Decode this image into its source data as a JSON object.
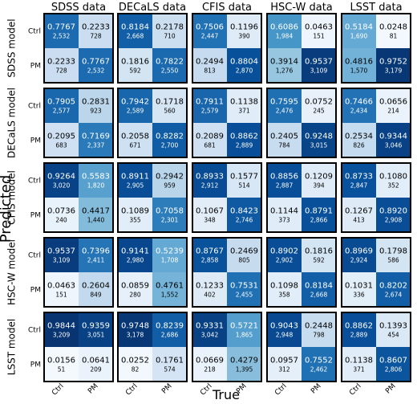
{
  "chart_data": {
    "type": "heatmap",
    "column_titles": [
      "SDSS data",
      "DECaLS data",
      "CFIS data",
      "HSC-W data",
      "LSST data"
    ],
    "row_titles": [
      "SDSS model",
      "DECaLS model",
      "CFIS model",
      "HSC-W model",
      "LSST model"
    ],
    "class_labels": [
      "Ctrl",
      "PM"
    ],
    "xlabel": "True",
    "ylabel": "Predicted",
    "color_range": [
      0,
      1
    ],
    "colormap": "Blues",
    "matrices": [
      [
        {
          "values": [
            [
              0.7767,
              0.2233
            ],
            [
              0.2233,
              0.7767
            ]
          ],
          "counts": [
            [
              "2,532",
              "728"
            ],
            [
              "728",
              "2,532"
            ]
          ]
        },
        {
          "values": [
            [
              0.8184,
              0.2178
            ],
            [
              0.1816,
              0.7822
            ]
          ],
          "counts": [
            [
              "2,668",
              "710"
            ],
            [
              "592",
              "2,550"
            ]
          ]
        },
        {
          "values": [
            [
              0.7506,
              0.1196
            ],
            [
              0.2494,
              0.8804
            ]
          ],
          "counts": [
            [
              "2,447",
              "390"
            ],
            [
              "813",
              "2,870"
            ]
          ]
        },
        {
          "values": [
            [
              0.6086,
              0.0463
            ],
            [
              0.3914,
              0.9537
            ]
          ],
          "counts": [
            [
              "1,984",
              "151"
            ],
            [
              "1,276",
              "3,109"
            ]
          ]
        },
        {
          "values": [
            [
              0.5184,
              0.0248
            ],
            [
              0.4816,
              0.9752
            ]
          ],
          "counts": [
            [
              "1,690",
              "81"
            ],
            [
              "1,570",
              "3,179"
            ]
          ]
        }
      ],
      [
        {
          "values": [
            [
              0.7905,
              0.2831
            ],
            [
              0.2095,
              0.7169
            ]
          ],
          "counts": [
            [
              "2,577",
              "923"
            ],
            [
              "683",
              "2,337"
            ]
          ]
        },
        {
          "values": [
            [
              0.7942,
              0.1718
            ],
            [
              0.2058,
              0.8282
            ]
          ],
          "counts": [
            [
              "2,589",
              "560"
            ],
            [
              "671",
              "2,700"
            ]
          ]
        },
        {
          "values": [
            [
              0.7911,
              0.1138
            ],
            [
              0.2089,
              0.8862
            ]
          ],
          "counts": [
            [
              "2,579",
              "371"
            ],
            [
              "681",
              "2,889"
            ]
          ]
        },
        {
          "values": [
            [
              0.7595,
              0.0752
            ],
            [
              0.2405,
              0.9248
            ]
          ],
          "counts": [
            [
              "2,476",
              "245"
            ],
            [
              "784",
              "3,015"
            ]
          ]
        },
        {
          "values": [
            [
              0.7466,
              0.0656
            ],
            [
              0.2534,
              0.9344
            ]
          ],
          "counts": [
            [
              "2,434",
              "214"
            ],
            [
              "826",
              "3,046"
            ]
          ]
        }
      ],
      [
        {
          "values": [
            [
              0.9264,
              0.5583
            ],
            [
              0.0736,
              0.4417
            ]
          ],
          "counts": [
            [
              "3,020",
              "1,820"
            ],
            [
              "240",
              "1,440"
            ]
          ]
        },
        {
          "values": [
            [
              0.8911,
              0.2942
            ],
            [
              0.1089,
              0.7058
            ]
          ],
          "counts": [
            [
              "2,905",
              "959"
            ],
            [
              "355",
              "2,301"
            ]
          ]
        },
        {
          "values": [
            [
              0.8933,
              0.1577
            ],
            [
              0.1067,
              0.8423
            ]
          ],
          "counts": [
            [
              "2,912",
              "514"
            ],
            [
              "348",
              "2,746"
            ]
          ]
        },
        {
          "values": [
            [
              0.8856,
              0.1209
            ],
            [
              0.1144,
              0.8791
            ]
          ],
          "counts": [
            [
              "2,887",
              "394"
            ],
            [
              "373",
              "2,866"
            ]
          ]
        },
        {
          "values": [
            [
              0.8733,
              0.108
            ],
            [
              0.1267,
              0.892
            ]
          ],
          "counts": [
            [
              "2,847",
              "352"
            ],
            [
              "413",
              "2,908"
            ]
          ]
        }
      ],
      [
        {
          "values": [
            [
              0.9537,
              0.7396
            ],
            [
              0.0463,
              0.2604
            ]
          ],
          "counts": [
            [
              "3,109",
              "2,411"
            ],
            [
              "151",
              "849"
            ]
          ]
        },
        {
          "values": [
            [
              0.9141,
              0.5239
            ],
            [
              0.0859,
              0.4761
            ]
          ],
          "counts": [
            [
              "2,980",
              "1,708"
            ],
            [
              "280",
              "1,552"
            ]
          ]
        },
        {
          "values": [
            [
              0.8767,
              0.2469
            ],
            [
              0.1233,
              0.7531
            ]
          ],
          "counts": [
            [
              "2,858",
              "805"
            ],
            [
              "402",
              "2,455"
            ]
          ]
        },
        {
          "values": [
            [
              0.8902,
              0.1816
            ],
            [
              0.1098,
              0.8184
            ]
          ],
          "counts": [
            [
              "2,902",
              "592"
            ],
            [
              "358",
              "2,668"
            ]
          ]
        },
        {
          "values": [
            [
              0.8969,
              0.1798
            ],
            [
              0.1031,
              0.8202
            ]
          ],
          "counts": [
            [
              "2,924",
              "586"
            ],
            [
              "336",
              "2,674"
            ]
          ]
        }
      ],
      [
        {
          "values": [
            [
              0.9844,
              0.9359
            ],
            [
              0.0156,
              0.0641
            ]
          ],
          "counts": [
            [
              "3,209",
              "3,051"
            ],
            [
              "51",
              "209"
            ]
          ]
        },
        {
          "values": [
            [
              0.9748,
              0.8239
            ],
            [
              0.0252,
              0.1761
            ]
          ],
          "counts": [
            [
              "3,178",
              "2,686"
            ],
            [
              "82",
              "574"
            ]
          ]
        },
        {
          "values": [
            [
              0.9331,
              0.5721
            ],
            [
              0.0669,
              0.4279
            ]
          ],
          "counts": [
            [
              "3,042",
              "1,865"
            ],
            [
              "218",
              "1,395"
            ]
          ]
        },
        {
          "values": [
            [
              0.9043,
              0.2448
            ],
            [
              0.0957,
              0.7552
            ]
          ],
          "counts": [
            [
              "2,948",
              "798"
            ],
            [
              "312",
              "2,462"
            ]
          ]
        },
        {
          "values": [
            [
              0.8862,
              0.1393
            ],
            [
              0.1138,
              0.8607
            ]
          ],
          "counts": [
            [
              "2,889",
              "454"
            ],
            [
              "371",
              "2,806"
            ]
          ]
        }
      ]
    ]
  }
}
